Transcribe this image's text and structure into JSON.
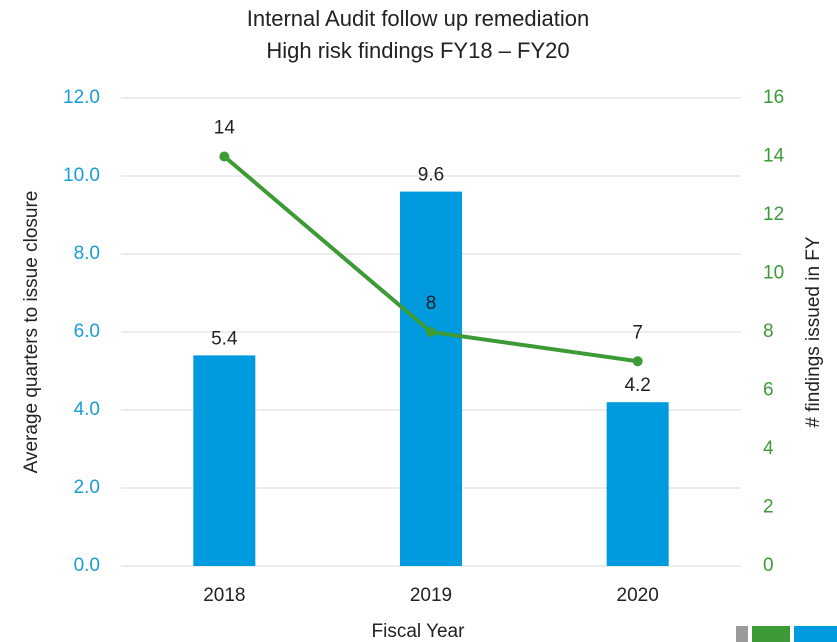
{
  "chart_data": {
    "type": "bar_line",
    "title": [
      "Internal Audit follow up remediation",
      "High risk findings FY18 – FY20"
    ],
    "x_label": "Fiscal Year",
    "y_label": "Average quarters to issue closure",
    "y2_label": "# findings issued in FY",
    "categories": [
      "2018",
      "2019",
      "2020"
    ],
    "series": [
      {
        "type": "bar",
        "color": "#009bde",
        "values": [
          5.4,
          9.6,
          4.2
        ]
      },
      {
        "type": "line",
        "color": "#3c9b35",
        "axis": "y2",
        "values": [
          14,
          8,
          7
        ]
      }
    ],
    "ylim": [
      0,
      12
    ],
    "yticks": [
      {
        "value": 0,
        "label": "0.0"
      },
      {
        "value": 2,
        "label": "2.0"
      },
      {
        "value": 4,
        "label": "4.0"
      },
      {
        "value": 6,
        "label": "6.0"
      },
      {
        "value": 8,
        "label": "8.0"
      },
      {
        "value": 10,
        "label": "10.0"
      },
      {
        "value": 12,
        "label": "12.0"
      }
    ],
    "y2lim": [
      0,
      16
    ],
    "y2ticks": [
      0,
      2,
      4,
      6,
      8,
      10,
      12,
      14,
      16
    ],
    "ytick_color": "#1a9cd8",
    "y2tick_color": "#3c9b35",
    "grid": true
  }
}
